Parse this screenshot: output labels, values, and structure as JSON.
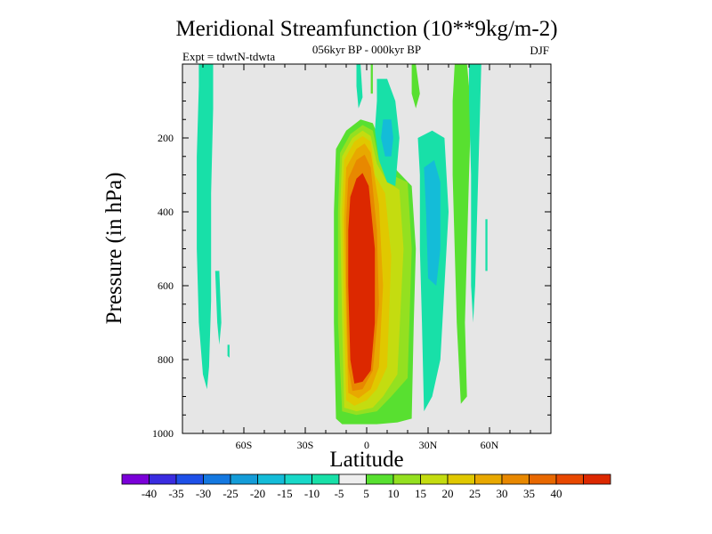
{
  "chart_data": {
    "type": "contour",
    "title": "Meridional Streamfunction (10**9kg/m-2)",
    "subtitle": "056kyr BP - 000kyr BP",
    "experiment": "Expt = tdwtN-tdwta",
    "season": "DJF",
    "xlabel": "Latitude",
    "ylabel": "Pressure (in hPa)",
    "xlim": [
      -90,
      90
    ],
    "ylim": [
      1000,
      0
    ],
    "x_ticks": [
      {
        "value": -60,
        "label": "60S"
      },
      {
        "value": -30,
        "label": "30S"
      },
      {
        "value": 0,
        "label": "0"
      },
      {
        "value": 30,
        "label": "30N"
      },
      {
        "value": 60,
        "label": "60N"
      }
    ],
    "y_ticks": [
      {
        "value": 200,
        "label": "200"
      },
      {
        "value": 400,
        "label": "400"
      },
      {
        "value": 600,
        "label": "600"
      },
      {
        "value": 800,
        "label": "800"
      },
      {
        "value": 1000,
        "label": "1000"
      }
    ],
    "background_color": "#e6e6e6",
    "colorbar": {
      "colors": [
        "#7a00d8",
        "#3a2ce0",
        "#1e50e8",
        "#1478e0",
        "#149cd8",
        "#14bcd8",
        "#18d8c8",
        "#18e0a8",
        "#eeeeee",
        "#58e030",
        "#94e020",
        "#c4dc10",
        "#e0c800",
        "#e8a800",
        "#e88800",
        "#e86800",
        "#e84800",
        "#dc2800"
      ],
      "tick_labels": [
        "-40",
        "-35",
        "-30",
        "-25",
        "-20",
        "-15",
        "-10",
        "-5",
        "5",
        "10",
        "15",
        "20",
        "25",
        "30",
        "35",
        "40"
      ]
    },
    "regions": [
      {
        "name": "region-sh-high-lat-cell",
        "level": -5,
        "color": "#18e0a8",
        "poly": [
          [
            -82,
            0
          ],
          [
            -75,
            0
          ],
          [
            -75,
            120
          ],
          [
            -76,
            350
          ],
          [
            -76,
            640
          ],
          [
            -77,
            820
          ],
          [
            -78,
            880
          ],
          [
            -80,
            840
          ],
          [
            -82,
            700
          ],
          [
            -83,
            500
          ],
          [
            -83,
            250
          ],
          [
            -82,
            60
          ]
        ]
      },
      {
        "name": "region-sh-small-cell",
        "level": -5,
        "color": "#18e0a8",
        "poly": [
          [
            -74,
            560
          ],
          [
            -72,
            560
          ],
          [
            -71,
            700
          ],
          [
            -72,
            760
          ],
          [
            -73,
            700
          ]
        ]
      },
      {
        "name": "region-sh-blob",
        "level": -5,
        "color": "#18e0a8",
        "poly": [
          [
            -68,
            760
          ],
          [
            -67,
            760
          ],
          [
            -67,
            795
          ],
          [
            -68,
            790
          ]
        ]
      },
      {
        "name": "region-positive-10",
        "level": 10,
        "color": "#58e030",
        "poly": [
          [
            -15,
            230
          ],
          [
            -10,
            180
          ],
          [
            -3,
            150
          ],
          [
            3,
            160
          ],
          [
            8,
            230
          ],
          [
            15,
            290
          ],
          [
            22,
            330
          ],
          [
            24,
            500
          ],
          [
            23,
            700
          ],
          [
            22,
            960
          ],
          [
            15,
            970
          ],
          [
            5,
            975
          ],
          [
            -5,
            975
          ],
          [
            -12,
            975
          ],
          [
            -15,
            960
          ],
          [
            -16,
            700
          ],
          [
            -16,
            400
          ]
        ]
      },
      {
        "name": "region-positive-15",
        "level": 15,
        "color": "#94e020",
        "poly": [
          [
            -13,
            240
          ],
          [
            -8,
            190
          ],
          [
            -2,
            165
          ],
          [
            3,
            180
          ],
          [
            6,
            260
          ],
          [
            12,
            300
          ],
          [
            20,
            320
          ],
          [
            22,
            500
          ],
          [
            20,
            850
          ],
          [
            12,
            900
          ],
          [
            5,
            940
          ],
          [
            -5,
            950
          ],
          [
            -12,
            940
          ],
          [
            -14,
            700
          ],
          [
            -14,
            400
          ]
        ]
      },
      {
        "name": "region-positive-20",
        "level": 20,
        "color": "#c4dc10",
        "poly": [
          [
            -12,
            250
          ],
          [
            -7,
            200
          ],
          [
            -2,
            180
          ],
          [
            2,
            195
          ],
          [
            5,
            270
          ],
          [
            10,
            320
          ],
          [
            16,
            340
          ],
          [
            18,
            500
          ],
          [
            15,
            840
          ],
          [
            8,
            900
          ],
          [
            3,
            930
          ],
          [
            -5,
            940
          ],
          [
            -11,
            930
          ],
          [
            -12,
            700
          ],
          [
            -13,
            400
          ]
        ]
      },
      {
        "name": "region-positive-25",
        "level": 25,
        "color": "#e0c800",
        "poly": [
          [
            -11,
            260
          ],
          [
            -6,
            210
          ],
          [
            -2,
            195
          ],
          [
            2,
            210
          ],
          [
            4,
            300
          ],
          [
            9,
            350
          ],
          [
            12,
            520
          ],
          [
            10,
            820
          ],
          [
            5,
            880
          ],
          [
            0,
            910
          ],
          [
            -6,
            925
          ],
          [
            -10,
            910
          ],
          [
            -11,
            700
          ],
          [
            -12,
            400
          ]
        ]
      },
      {
        "name": "region-positive-30",
        "level": 30,
        "color": "#e8a800",
        "poly": [
          [
            -10,
            280
          ],
          [
            -5,
            230
          ],
          [
            -1,
            215
          ],
          [
            2,
            240
          ],
          [
            6,
            380
          ],
          [
            8,
            600
          ],
          [
            6,
            820
          ],
          [
            2,
            880
          ],
          [
            -4,
            905
          ],
          [
            -9,
            890
          ],
          [
            -10,
            700
          ],
          [
            -11,
            420
          ]
        ]
      },
      {
        "name": "region-positive-35",
        "level": 35,
        "color": "#e88800",
        "poly": [
          [
            -9,
            310
          ],
          [
            -5,
            260
          ],
          [
            -1,
            245
          ],
          [
            2,
            280
          ],
          [
            5,
            450
          ],
          [
            6,
            650
          ],
          [
            3,
            830
          ],
          [
            -2,
            880
          ],
          [
            -7,
            885
          ],
          [
            -9,
            820
          ],
          [
            -10,
            600
          ],
          [
            -10,
            420
          ]
        ]
      },
      {
        "name": "region-positive-40",
        "level": 40,
        "color": "#dc2800",
        "poly": [
          [
            -8,
            360
          ],
          [
            -5,
            310
          ],
          [
            -2,
            295
          ],
          [
            1,
            330
          ],
          [
            4,
            500
          ],
          [
            4,
            700
          ],
          [
            2,
            830
          ],
          [
            -2,
            860
          ],
          [
            -6,
            865
          ],
          [
            -8,
            800
          ],
          [
            -9,
            600
          ],
          [
            -9,
            450
          ]
        ]
      },
      {
        "name": "region-top-green-strip",
        "level": 10,
        "color": "#58e030",
        "poly": [
          [
            2,
            0
          ],
          [
            3,
            0
          ],
          [
            3,
            80
          ],
          [
            2,
            80
          ]
        ]
      },
      {
        "name": "region-cyan-upper-left",
        "level": -5,
        "color": "#18e0a8",
        "poly": [
          [
            -5,
            0
          ],
          [
            -3,
            0
          ],
          [
            -2,
            90
          ],
          [
            -4,
            120
          ],
          [
            -5,
            60
          ]
        ]
      },
      {
        "name": "region-cyan-upper-mid",
        "level": -5,
        "color": "#18e0a8",
        "poly": [
          [
            5,
            40
          ],
          [
            10,
            40
          ],
          [
            14,
            100
          ],
          [
            16,
            200
          ],
          [
            14,
            330
          ],
          [
            10,
            320
          ],
          [
            6,
            260
          ],
          [
            4,
            180
          ],
          [
            5,
            100
          ]
        ]
      },
      {
        "name": "region-blue-upper-mid",
        "level": -15,
        "color": "#14bcd8",
        "poly": [
          [
            8,
            150
          ],
          [
            12,
            150
          ],
          [
            13,
            200
          ],
          [
            12,
            250
          ],
          [
            9,
            250
          ],
          [
            7,
            200
          ]
        ]
      },
      {
        "name": "region-green-upper-right",
        "level": 10,
        "color": "#58e030",
        "poly": [
          [
            22,
            0
          ],
          [
            24,
            0
          ],
          [
            26,
            80
          ],
          [
            24,
            120
          ],
          [
            22,
            80
          ]
        ]
      },
      {
        "name": "region-cyan-nh-mid",
        "level": -5,
        "color": "#18e0a8",
        "poly": [
          [
            25,
            200
          ],
          [
            32,
            180
          ],
          [
            38,
            200
          ],
          [
            40,
            400
          ],
          [
            38,
            600
          ],
          [
            36,
            800
          ],
          [
            32,
            900
          ],
          [
            28,
            940
          ],
          [
            27,
            700
          ],
          [
            26,
            500
          ],
          [
            26,
            300
          ]
        ]
      },
      {
        "name": "region-blue-nh-mid",
        "level": -10,
        "color": "#14bcd8",
        "poly": [
          [
            28,
            280
          ],
          [
            33,
            260
          ],
          [
            36,
            320
          ],
          [
            36,
            500
          ],
          [
            34,
            600
          ],
          [
            30,
            580
          ],
          [
            29,
            400
          ]
        ]
      },
      {
        "name": "region-green-nh-60",
        "level": 5,
        "color": "#58e030",
        "poly": [
          [
            43,
            0
          ],
          [
            49,
            0
          ],
          [
            51,
            120
          ],
          [
            50,
            300
          ],
          [
            49,
            500
          ],
          [
            48,
            700
          ],
          [
            49,
            900
          ],
          [
            46,
            920
          ],
          [
            44,
            700
          ],
          [
            43,
            500
          ],
          [
            42,
            300
          ],
          [
            42,
            100
          ]
        ]
      },
      {
        "name": "region-cyan-nh-70",
        "level": -5,
        "color": "#18e0a8",
        "poly": [
          [
            50,
            0
          ],
          [
            56,
            0
          ],
          [
            55,
            200
          ],
          [
            54,
            400
          ],
          [
            53,
            600
          ],
          [
            52,
            700
          ],
          [
            51,
            600
          ],
          [
            51,
            300
          ],
          [
            50,
            100
          ]
        ]
      },
      {
        "name": "region-cyan-nh-thin",
        "level": -5,
        "color": "#18e0a8",
        "poly": [
          [
            58,
            420
          ],
          [
            59,
            420
          ],
          [
            59,
            560
          ],
          [
            58,
            560
          ]
        ]
      }
    ]
  }
}
